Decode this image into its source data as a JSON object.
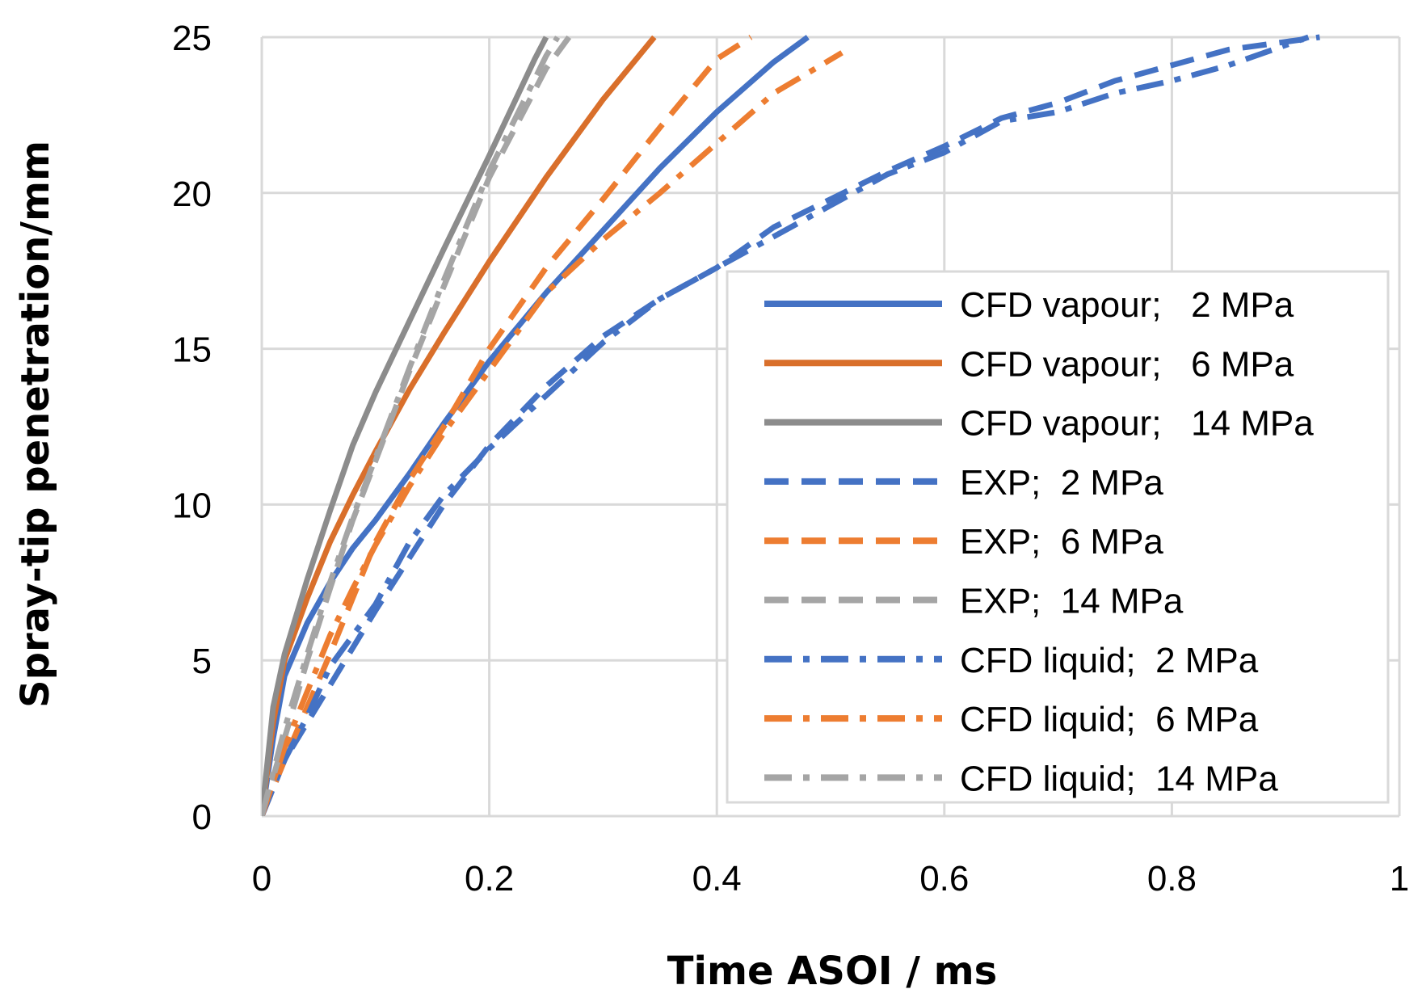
{
  "chart_data": {
    "type": "line",
    "title": "",
    "xlabel": "Time ASOI / ms",
    "ylabel": "Spray-tip penetration/mm",
    "xlim": [
      0,
      1
    ],
    "ylim": [
      0,
      25
    ],
    "x_ticks": [
      0,
      0.2,
      0.4,
      0.6,
      0.8,
      1
    ],
    "x_tick_labels": [
      "0",
      "0.2",
      "0.4",
      "0.6",
      "0.8",
      "1"
    ],
    "y_ticks": [
      0,
      5,
      10,
      15,
      20,
      25
    ],
    "y_tick_labels": [
      "0",
      "5",
      "10",
      "15",
      "20",
      "25"
    ],
    "grid": true,
    "legend_position": "bottom-right",
    "series": [
      {
        "name": "CFD vapour;   2 MPa",
        "color": "#4472C4",
        "style": "solid",
        "x": [
          0,
          0.01,
          0.02,
          0.04,
          0.06,
          0.08,
          0.1,
          0.13,
          0.16,
          0.2,
          0.25,
          0.3,
          0.35,
          0.4,
          0.45,
          0.48
        ],
        "y": [
          0,
          2.5,
          4.5,
          6.2,
          7.5,
          8.6,
          9.5,
          11.0,
          12.6,
          14.6,
          16.8,
          18.8,
          20.8,
          22.6,
          24.2,
          25
        ]
      },
      {
        "name": "CFD vapour;   6 MPa",
        "color": "#D96F2B",
        "style": "solid",
        "x": [
          0,
          0.01,
          0.02,
          0.04,
          0.06,
          0.08,
          0.1,
          0.13,
          0.16,
          0.2,
          0.25,
          0.3,
          0.345
        ],
        "y": [
          0,
          3.0,
          5.0,
          7.0,
          8.8,
          10.3,
          11.7,
          13.7,
          15.5,
          17.8,
          20.5,
          23.0,
          25
        ]
      },
      {
        "name": "CFD vapour;   14 MPa",
        "color": "#8C8C8C",
        "style": "solid",
        "x": [
          0,
          0.01,
          0.02,
          0.04,
          0.06,
          0.08,
          0.1,
          0.13,
          0.16,
          0.2,
          0.24,
          0.25
        ],
        "y": [
          0,
          3.5,
          5.2,
          7.6,
          9.8,
          11.9,
          13.6,
          15.9,
          18.2,
          21.2,
          24.3,
          25
        ]
      },
      {
        "name": "EXP;  2 MPa",
        "color": "#4472C4",
        "style": "dash",
        "x": [
          0,
          0.02,
          0.04,
          0.06,
          0.08,
          0.1,
          0.13,
          0.16,
          0.2,
          0.25,
          0.3,
          0.35,
          0.4,
          0.45,
          0.5,
          0.55,
          0.6,
          0.65,
          0.7,
          0.75,
          0.8,
          0.85,
          0.93
        ],
        "y": [
          0,
          1.8,
          3.0,
          4.2,
          5.4,
          6.6,
          8.3,
          10.0,
          11.9,
          13.8,
          15.4,
          16.6,
          17.6,
          18.9,
          19.8,
          20.7,
          21.5,
          22.4,
          22.9,
          23.6,
          24.1,
          24.6,
          25
        ]
      },
      {
        "name": "EXP;  6 MPa",
        "color": "#ED7D31",
        "style": "dash",
        "x": [
          0,
          0.02,
          0.04,
          0.06,
          0.08,
          0.1,
          0.13,
          0.16,
          0.2,
          0.25,
          0.3,
          0.35,
          0.4,
          0.43
        ],
        "y": [
          0,
          1.8,
          3.5,
          5.2,
          7.0,
          8.8,
          10.8,
          12.5,
          15.0,
          17.6,
          19.8,
          22.1,
          24.3,
          25
        ]
      },
      {
        "name": "EXP;  14 MPa",
        "color": "#A5A5A5",
        "style": "dash",
        "x": [
          0,
          0.02,
          0.04,
          0.06,
          0.08,
          0.1,
          0.13,
          0.16,
          0.2,
          0.25,
          0.27
        ],
        "y": [
          0,
          2.5,
          5.0,
          7.3,
          9.5,
          11.4,
          14.3,
          17.0,
          20.5,
          24.0,
          25
        ]
      },
      {
        "name": "CFD liquid;  2 MPa",
        "color": "#4472C4",
        "style": "dashdot",
        "x": [
          0,
          0.02,
          0.04,
          0.06,
          0.08,
          0.1,
          0.13,
          0.16,
          0.2,
          0.25,
          0.3,
          0.35,
          0.4,
          0.45,
          0.5,
          0.55,
          0.6,
          0.65,
          0.7,
          0.75,
          0.8,
          0.85,
          0.92
        ],
        "y": [
          0,
          1.8,
          3.2,
          4.8,
          5.8,
          6.8,
          8.8,
          10.3,
          11.8,
          13.5,
          15.2,
          16.6,
          17.6,
          18.6,
          19.6,
          20.6,
          21.3,
          22.3,
          22.6,
          23.2,
          23.6,
          24.1,
          25
        ]
      },
      {
        "name": "CFD liquid;  6 MPa",
        "color": "#ED7D31",
        "style": "dashdot",
        "x": [
          0,
          0.02,
          0.04,
          0.06,
          0.08,
          0.1,
          0.13,
          0.16,
          0.2,
          0.25,
          0.3,
          0.35,
          0.4,
          0.45,
          0.51
        ],
        "y": [
          0,
          2.2,
          4.0,
          5.8,
          7.3,
          8.7,
          10.6,
          12.3,
          14.3,
          16.8,
          18.5,
          20.0,
          21.6,
          23.2,
          24.5
        ]
      },
      {
        "name": "CFD liquid;  14 MPa",
        "color": "#A5A5A5",
        "style": "dashdot",
        "x": [
          0,
          0.02,
          0.04,
          0.06,
          0.08,
          0.1,
          0.13,
          0.16,
          0.2,
          0.25,
          0.26
        ],
        "y": [
          0,
          2.8,
          5.2,
          7.5,
          9.6,
          11.5,
          14.4,
          17.2,
          20.7,
          24.4,
          25
        ]
      }
    ]
  }
}
